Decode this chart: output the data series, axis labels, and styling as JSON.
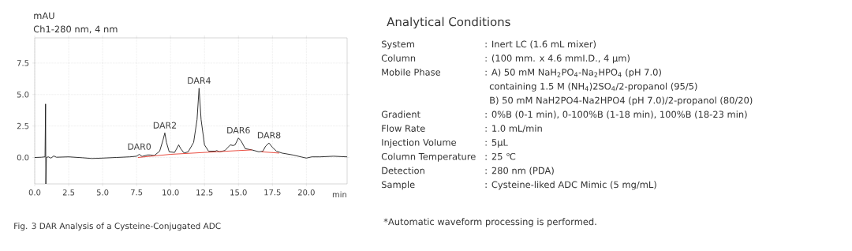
{
  "chart_data": [
    {
      "type": "line",
      "subtitle": "Ch1-280 nm, 4 nm",
      "xlabel": "min",
      "ylabel": "mAU",
      "xlim": [
        0,
        23
      ],
      "ylim": [
        -2.1,
        9.5
      ],
      "xticks": [
        {
          "value": 0,
          "label": "0.0"
        },
        2.5,
        {
          "value": 5,
          "label": "5.0"
        },
        7.5,
        {
          "value": 10,
          "label": "10.0"
        },
        12.5,
        {
          "value": 15,
          "label": "15.0"
        },
        17.5,
        {
          "value": 20,
          "label": "20.0"
        }
      ],
      "yticks": [
        {
          "value": 0,
          "label": "0.0"
        },
        2.5,
        {
          "value": 5,
          "label": "5.0"
        },
        7.5
      ],
      "grid": true,
      "series": [
        {
          "color": "#1a1a1a",
          "x": [
            0,
            0.5,
            0.76,
            0.8,
            0.82,
            0.86,
            1.0,
            1.2,
            1.4,
            1.6,
            2.5,
            3.5,
            4.2,
            5,
            6,
            7,
            7.5,
            7.7,
            7.9,
            8.3,
            8.5,
            8.8,
            9.2,
            9.45,
            9.58,
            9.7,
            9.9,
            10.3,
            10.6,
            10.75,
            11.0,
            11.3,
            11.7,
            11.95,
            12.1,
            12.25,
            12.5,
            12.8,
            13.3,
            13.4,
            13.6,
            14.0,
            14.4,
            14.6,
            14.75,
            15.0,
            15.2,
            15.5,
            16.0,
            16.5,
            16.8,
            17.0,
            17.25,
            17.5,
            17.8,
            18.2,
            19.0,
            19.6,
            20.0,
            20.4,
            21,
            22,
            23
          ],
          "values": [
            0.0,
            0.02,
            0.05,
            4.25,
            -2.1,
            0.0,
            0.05,
            -0.05,
            0.12,
            0.02,
            0.05,
            -0.02,
            -0.08,
            -0.05,
            0.0,
            0.05,
            0.1,
            0.25,
            0.08,
            0.2,
            0.2,
            0.15,
            0.5,
            1.4,
            1.95,
            1.2,
            0.45,
            0.4,
            1.0,
            0.7,
            0.35,
            0.45,
            1.2,
            3.0,
            5.5,
            3.0,
            1.0,
            0.5,
            0.5,
            0.55,
            0.45,
            0.55,
            1.0,
            0.95,
            1.0,
            1.55,
            1.3,
            0.7,
            0.6,
            0.45,
            0.5,
            0.9,
            1.15,
            0.8,
            0.5,
            0.35,
            0.2,
            0.05,
            -0.05,
            0.05,
            0.05,
            0.1,
            0.05
          ]
        },
        {
          "color": "#e8392c",
          "x": [
            7.6,
            10,
            12.5,
            15,
            16.0,
            16.3,
            16.7,
            18.0
          ],
          "values": [
            0.0,
            0.25,
            0.4,
            0.55,
            0.6,
            null,
            0.45,
            0.35
          ]
        }
      ],
      "annotations": [
        {
          "text": "DAR0",
          "x": 7.7,
          "y": 0.25
        },
        {
          "text": "DAR2",
          "x": 9.58,
          "y": 1.95
        },
        {
          "text": "DAR4",
          "x": 12.1,
          "y": 5.5
        },
        {
          "text": "DAR6",
          "x": 15.0,
          "y": 1.55
        },
        {
          "text": "DAR8",
          "x": 17.25,
          "y": 1.15
        },
        "Fig. 3  DAR Analysis of a Cysteine-Conjugated ADC"
      ]
    },
    {
      "type": "other",
      "title": "Analytical Conditions",
      "categories": [
        "System",
        "Column",
        "Mobile Phase",
        null,
        null,
        "Gradient",
        "Flow Rate",
        "Injection Volume",
        "Column Temperature",
        "Detection",
        "Sample"
      ],
      "annotations": [
        ": Inert LC  (1.6 mL mixer)",
        ": (100 mm. x 4.6 mmI.D., 4 µm)",
        ": A) 50 mM NaH$_{2}$PO$_{4}$-Na$_{2}$HPO$_{4}$ (pH 7.0)",
        "containing 1.5 M (NH$_{4}$)2SO$_{4}$/2-propanol (95/5)",
        "B) 50 mM NaH2PO4-Na2HPO4 (pH 7.0)/2-propanol (80/20)",
        ": 0%B (0-1 min), 0-100%B (1-18 min), 100%B (18-23 min)",
        ": 1.0 mL/min",
        ": 5µL",
        ": 25 ℃",
        ": 280 nm (PDA)",
        ": Cysteine-liked ADC Mimic (5 mg/mL)",
        "*Automatic waveform processing is performed."
      ]
    }
  ]
}
